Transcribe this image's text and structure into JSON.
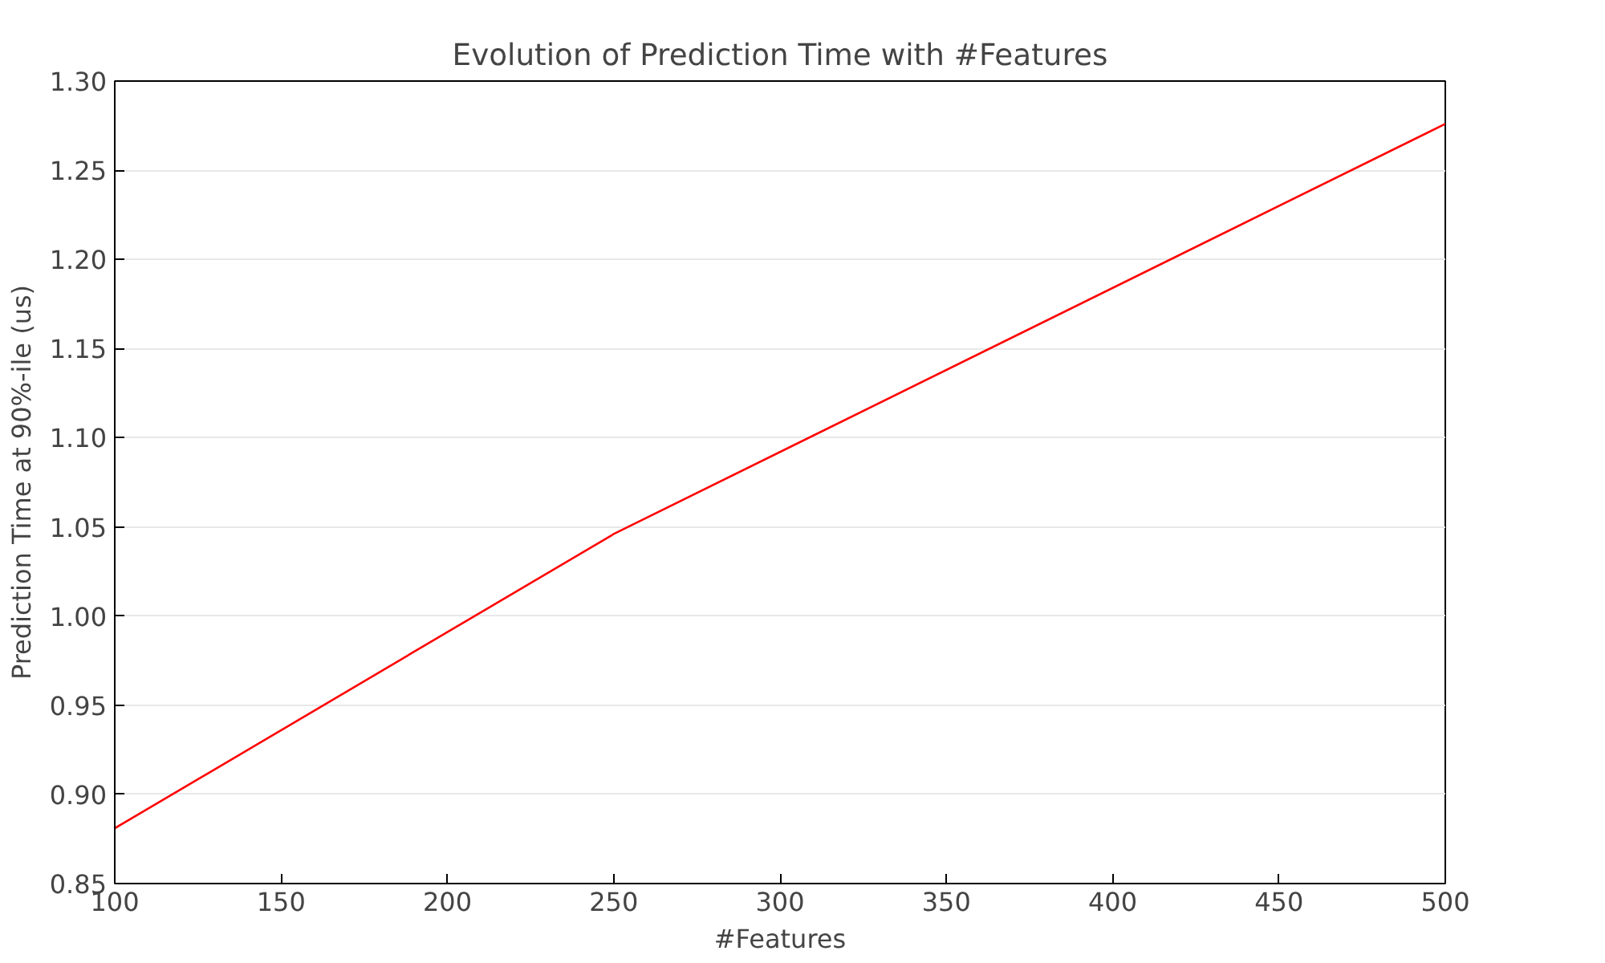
{
  "chart_data": {
    "type": "line",
    "title": "Evolution of Prediction Time with #Features",
    "xlabel": "#Features",
    "ylabel": "Prediction Time at 90%-ile (us)",
    "x": [
      100,
      250,
      500
    ],
    "series": [
      {
        "color": "#ff0000",
        "values": [
          0.881,
          1.046,
          1.276
        ]
      }
    ],
    "xlim": [
      100,
      500
    ],
    "xticks": [
      100,
      150,
      200,
      250,
      300,
      350,
      400,
      450,
      500
    ],
    "ylim": [
      0.85,
      1.3
    ],
    "yticks": [
      {
        "value": 0.85,
        "label": "0.85"
      },
      {
        "value": 0.9,
        "label": "0.90"
      },
      {
        "value": 0.95,
        "label": "0.95"
      },
      {
        "value": 1.0,
        "label": "1.00"
      },
      {
        "value": 1.05,
        "label": "1.05"
      },
      {
        "value": 1.1,
        "label": "1.10"
      },
      {
        "value": 1.15,
        "label": "1.15"
      },
      {
        "value": 1.2,
        "label": "1.20"
      },
      {
        "value": 1.25,
        "label": "1.25"
      },
      {
        "value": 1.3,
        "label": "1.30"
      }
    ],
    "grid": "y"
  }
}
